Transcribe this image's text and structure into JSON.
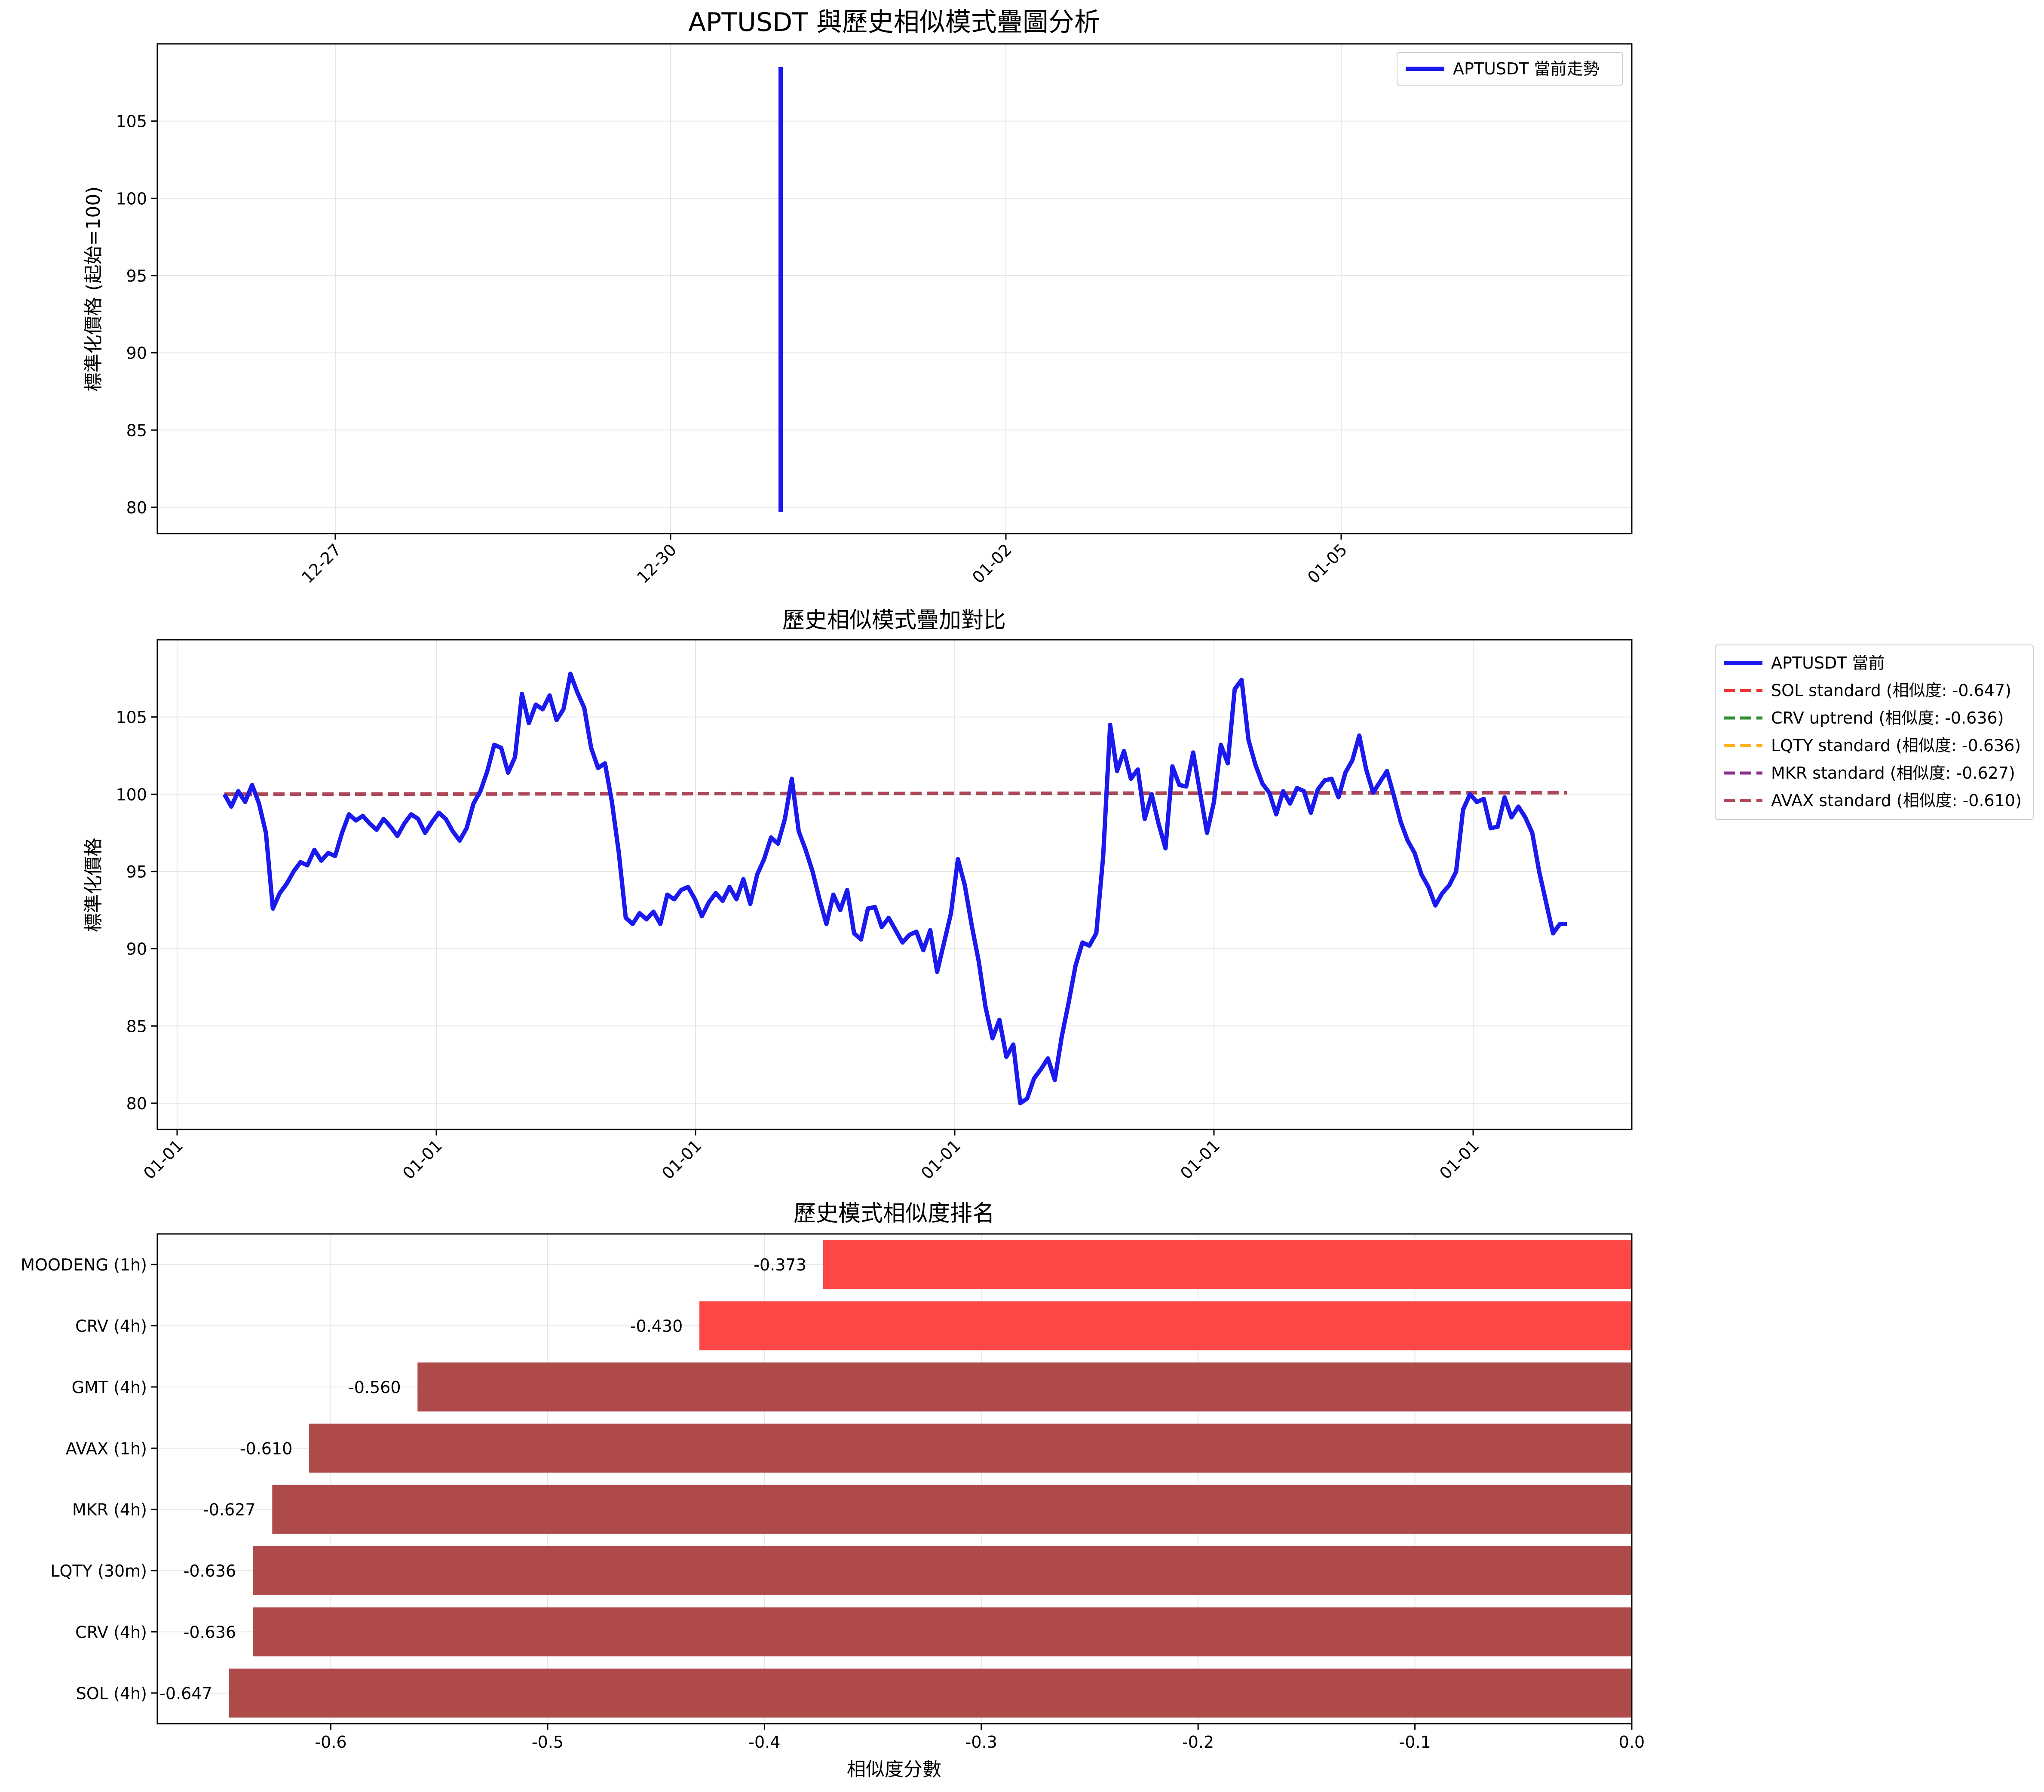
{
  "figure": {
    "suptitle": "APTUSDT 與歷史相似模式疊圖分析"
  },
  "colors": {
    "current": "#1a1aee",
    "sol": "#ee3333",
    "crv": "#2e8b2e",
    "lqty": "#ffb020",
    "mkr": "#8b2c8b",
    "avax": "#b04a55",
    "bar_red": "#ff4747",
    "bar_dark": "#ae4a4a",
    "grid": "#e6e6e6"
  },
  "chart_data": [
    {
      "type": "line",
      "title": "",
      "ylabel": "標準化價格 (起始=100)",
      "xlabel": "",
      "x_ticks": [
        "12-27",
        "12-30",
        "01-02",
        "01-05"
      ],
      "y_ticks": [
        "80",
        "85",
        "90",
        "95",
        "100",
        "105"
      ],
      "ylim": [
        78.3,
        110.0
      ],
      "grid": true,
      "legend_position": "upper-right",
      "series": [
        {
          "name": "APTUSDT 當前走勢",
          "x": [
            "12-31",
            "12-31"
          ],
          "y": [
            79.7,
            108.5
          ]
        }
      ]
    },
    {
      "type": "line",
      "title": "歷史相似模式疊加對比",
      "ylabel": "標準化價格",
      "xlabel": "",
      "x_ticks": [
        "01-01",
        "01-01",
        "01-01",
        "01-01",
        "01-01",
        "01-01"
      ],
      "y_ticks": [
        "80",
        "85",
        "90",
        "95",
        "100",
        "105"
      ],
      "ylim": [
        78.3,
        110.0
      ],
      "grid": true,
      "legend_position": "outside-right",
      "series": [
        {
          "name": "APTUSDT 當前",
          "y": [
            100.0,
            99.2,
            100.2,
            99.5,
            100.6,
            99.4,
            97.5,
            92.6,
            93.6,
            94.2,
            95.0,
            95.6,
            95.4,
            96.4,
            95.7,
            96.2,
            96.0,
            97.5,
            98.7,
            98.3,
            98.6,
            98.1,
            97.7,
            98.4,
            97.9,
            97.3,
            98.1,
            98.7,
            98.4,
            97.5,
            98.2,
            98.8,
            98.4,
            97.6,
            97.0,
            97.8,
            99.4,
            100.2,
            101.5,
            103.2,
            103.0,
            101.4,
            102.4,
            106.5,
            104.6,
            105.8,
            105.5,
            106.4,
            104.8,
            105.5,
            107.8,
            106.6,
            105.6,
            103.0,
            101.7,
            102.0,
            99.5,
            96.2,
            92.0,
            91.6,
            92.3,
            91.9,
            92.4,
            91.6,
            93.5,
            93.2,
            93.8,
            94.0,
            93.2,
            92.1,
            93.0,
            93.6,
            93.1,
            94.0,
            93.2,
            94.5,
            92.9,
            94.8,
            95.8,
            97.2,
            96.8,
            98.4,
            101.0,
            97.6,
            96.4,
            95.0,
            93.2,
            91.6,
            93.5,
            92.5,
            93.8,
            91.0,
            90.6,
            92.6,
            92.7,
            91.4,
            92.0,
            91.2,
            90.4,
            90.9,
            91.1,
            89.9,
            91.2,
            88.5,
            90.4,
            92.3,
            95.8,
            94.1,
            91.5,
            89.2,
            86.2,
            84.2,
            85.4,
            83.0,
            83.8,
            80.0,
            80.3,
            81.6,
            82.2,
            82.9,
            81.5,
            84.3,
            86.5,
            88.9,
            90.4,
            90.2,
            91.0,
            96.0,
            104.5,
            101.5,
            102.8,
            101.0,
            101.6,
            98.4,
            100.0,
            98.1,
            96.5,
            101.8,
            100.6,
            100.5,
            102.7,
            100.1,
            97.5,
            99.5,
            103.2,
            102.0,
            106.8,
            107.4,
            103.5,
            101.9,
            100.7,
            100.1,
            98.7,
            100.2,
            99.4,
            100.4,
            100.2,
            98.8,
            100.3,
            100.9,
            101.0,
            99.8,
            101.4,
            102.2,
            103.8,
            101.6,
            100.1,
            100.8,
            101.5,
            99.9,
            98.2,
            97.0,
            96.2,
            94.8,
            94.0,
            92.8,
            93.6,
            94.1,
            95.0,
            99.0,
            100.0,
            99.5,
            99.7,
            97.8,
            97.9,
            99.8,
            98.5,
            99.2,
            98.5,
            97.5,
            95.0,
            93.0,
            91.0,
            91.6,
            91.6
          ],
          "width": 4.5
        },
        {
          "name": "SOL standard (相似度: -0.647)",
          "y_start": 100.0,
          "y_end": 100.1,
          "style": "dashed"
        },
        {
          "name": "CRV uptrend (相似度: -0.636)",
          "y_start": 100.0,
          "y_end": 100.1,
          "style": "dashed"
        },
        {
          "name": "LQTY standard (相似度: -0.636)",
          "y_start": 100.0,
          "y_end": 100.1,
          "style": "dashed"
        },
        {
          "name": "MKR standard (相似度: -0.627)",
          "y_start": 100.0,
          "y_end": 100.1,
          "style": "dashed"
        },
        {
          "name": "AVAX standard (相似度: -0.610)",
          "y_start": 100.0,
          "y_end": 100.1,
          "style": "dashed"
        }
      ]
    },
    {
      "type": "bar",
      "orientation": "horizontal",
      "title": "歷史模式相似度排名",
      "xlabel": "相似度分數",
      "ylabel": "",
      "xlim": [
        -0.68,
        0.0
      ],
      "x_ticks": [
        "-0.6",
        "-0.5",
        "-0.4",
        "-0.3",
        "-0.2",
        "-0.1",
        "0.0"
      ],
      "x_tick_values": [
        -0.6,
        -0.5,
        -0.4,
        -0.3,
        -0.2,
        -0.1,
        0.0
      ],
      "grid": true,
      "categories": [
        "MOODENG (1h)",
        "CRV (4h)",
        "GMT (4h)",
        "AVAX (1h)",
        "MKR (4h)",
        "LQTY (30m)",
        "CRV (4h)",
        "SOL (4h)"
      ],
      "values": [
        -0.373,
        -0.43,
        -0.56,
        -0.61,
        -0.627,
        -0.636,
        -0.636,
        -0.647
      ],
      "value_labels": [
        "-0.373",
        "-0.430",
        "-0.560",
        "-0.610",
        "-0.627",
        "-0.636",
        "-0.636",
        "-0.647"
      ],
      "bar_colors": [
        "red",
        "red",
        "dark",
        "dark",
        "dark",
        "dark",
        "dark",
        "dark"
      ]
    }
  ]
}
